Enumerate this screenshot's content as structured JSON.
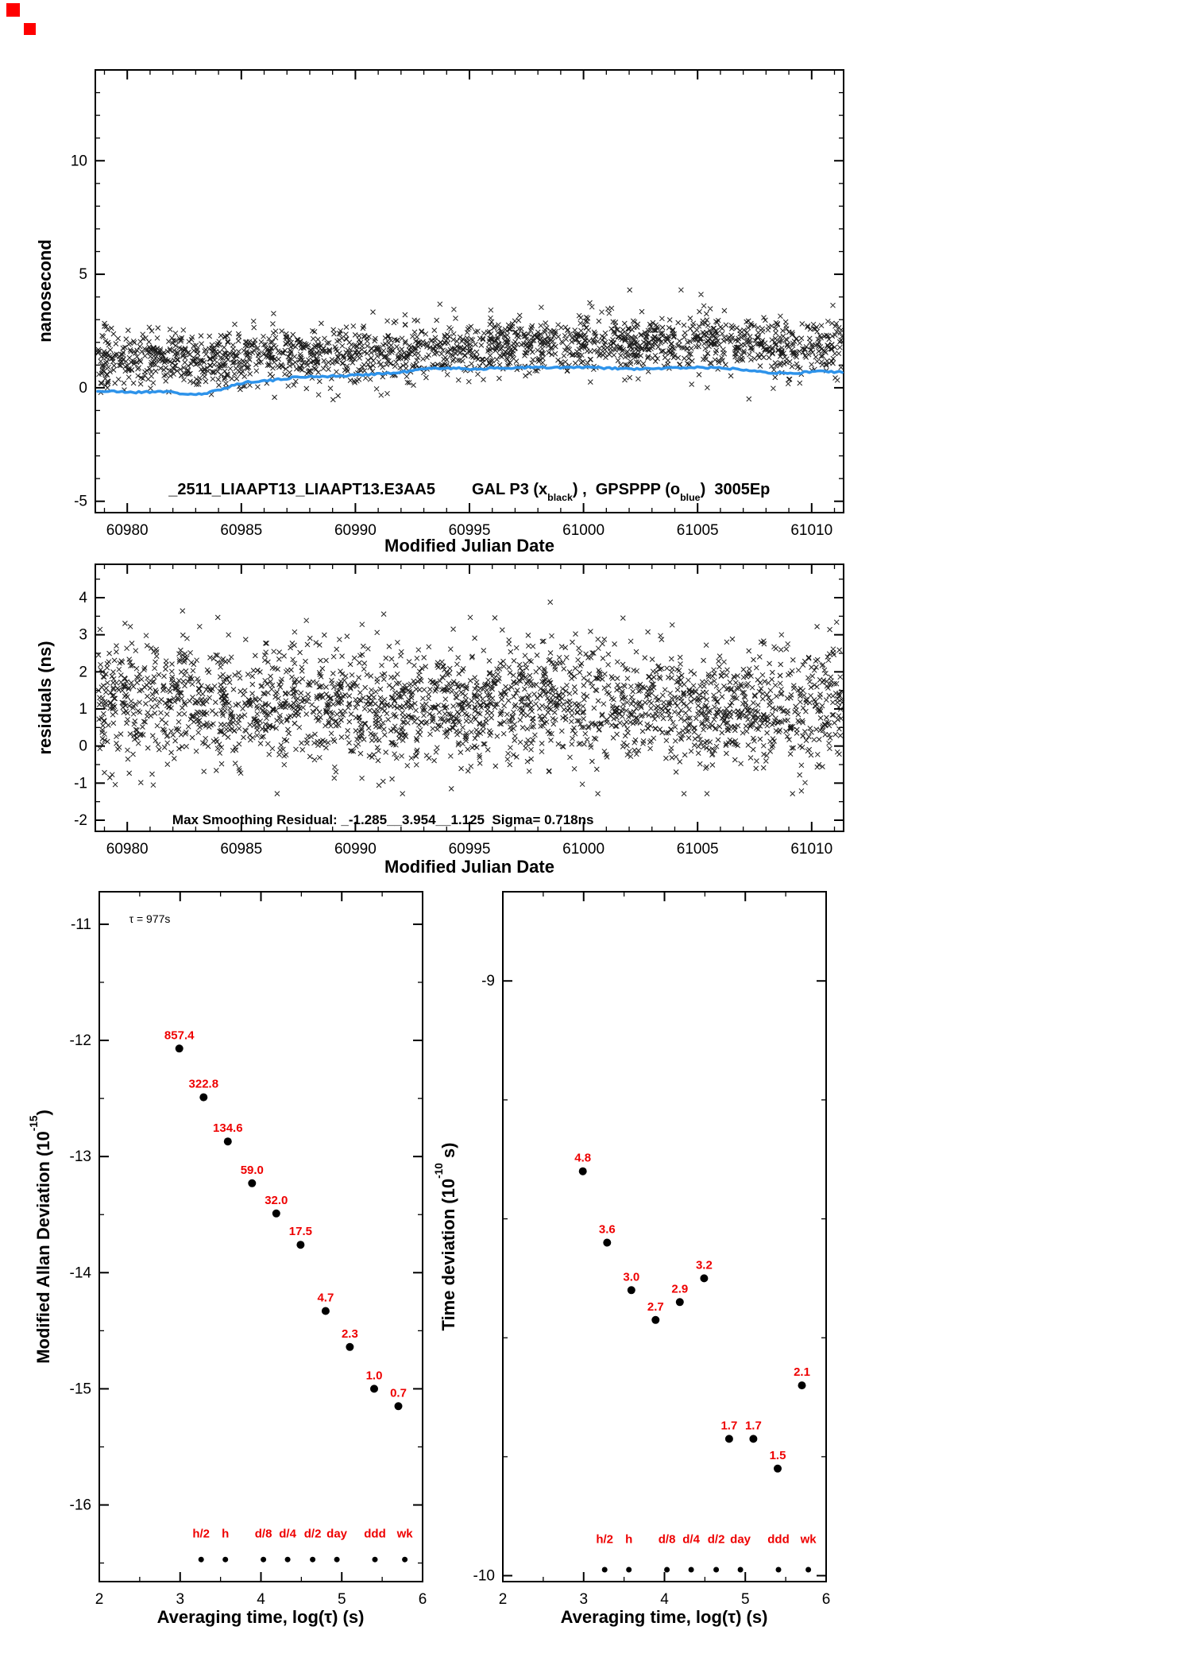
{
  "page": {
    "corner_mark_color": "#ff0000"
  },
  "chart_data": [
    {
      "type": "scatter",
      "xlabel": "Modified Julian Date",
      "ylabel": "nanosecond",
      "xlim": [
        60978.6,
        61011.4
      ],
      "ylim": [
        -5.5,
        14.0
      ],
      "xticks": [
        60980,
        60985,
        60990,
        60995,
        61000,
        61005,
        61010
      ],
      "yticks": [
        -5,
        0,
        5,
        10
      ],
      "annotation": {
        "id": "_2511_LIAAPT13_LIAAPT13.E3AA5",
        "seg1": "GAL P3 (x",
        "sub1": "black",
        "seg2": ") ,  GPSPPP (o",
        "sub2": "blue",
        "seg3": ")  3005Ep"
      },
      "series": [
        {
          "name": "GAL-P3",
          "marker": "x",
          "color": "#1c1c1c",
          "kind": "noise",
          "n": 1900,
          "seed": 7,
          "x_range": [
            60978.7,
            61011.35
          ],
          "spread": 0.6,
          "mean_profile": [
            [
              60978.7,
              1.3
            ],
            [
              60983,
              1.25
            ],
            [
              60987,
              1.45
            ],
            [
              60991,
              1.5
            ],
            [
              60994,
              1.6
            ],
            [
              60997,
              1.85
            ],
            [
              60999,
              2.05
            ],
            [
              61001,
              2.0
            ],
            [
              61004,
              1.9
            ],
            [
              61007,
              1.95
            ],
            [
              61009,
              1.7
            ],
            [
              61011.35,
              1.8
            ]
          ],
          "clamp": [
            -1.4,
            4.6
          ]
        },
        {
          "name": "GPSPPP",
          "marker": "o",
          "color": "#2e93ea",
          "kind": "line",
          "width": 3.5,
          "seed": 21,
          "wiggle": 0.045,
          "points": [
            [
              60978.7,
              -0.15
            ],
            [
              60980.5,
              -0.2
            ],
            [
              60981.5,
              -0.15
            ],
            [
              60982.5,
              -0.27
            ],
            [
              60983.3,
              -0.3
            ],
            [
              60984,
              -0.1
            ],
            [
              60984.6,
              0.1
            ],
            [
              60985.4,
              0.28
            ],
            [
              60986.4,
              0.32
            ],
            [
              60987.2,
              0.45
            ],
            [
              60988.2,
              0.5
            ],
            [
              60989.5,
              0.52
            ],
            [
              60990.6,
              0.6
            ],
            [
              60991.8,
              0.65
            ],
            [
              60992.8,
              0.8
            ],
            [
              60993.8,
              0.88
            ],
            [
              60995,
              0.83
            ],
            [
              60996.2,
              0.85
            ],
            [
              60997.4,
              0.9
            ],
            [
              60998.6,
              0.88
            ],
            [
              61000,
              0.9
            ],
            [
              61001.4,
              0.85
            ],
            [
              61002.6,
              0.82
            ],
            [
              61003.8,
              0.87
            ],
            [
              61005,
              0.9
            ],
            [
              61006.2,
              0.86
            ],
            [
              61007.2,
              0.8
            ],
            [
              61008.2,
              0.67
            ],
            [
              61009.2,
              0.62
            ],
            [
              61010.2,
              0.74
            ],
            [
              61011.35,
              0.68
            ]
          ]
        }
      ]
    },
    {
      "type": "scatter",
      "xlabel": "Modified Julian Date",
      "ylabel": "residuals (ns)",
      "xlim": [
        60978.6,
        61011.4
      ],
      "ylim": [
        -2.3,
        4.9
      ],
      "xticks": [
        60980,
        60985,
        60990,
        60995,
        61000,
        61005,
        61010
      ],
      "yticks": [
        -2,
        -1,
        0,
        1,
        2,
        3,
        4
      ],
      "annotation": "Max Smoothing Residual: _-1.285__3.954__1.125  Sigma= 0.718ns",
      "stats": {
        "residual_min": -1.285,
        "residual_max": 3.954,
        "residual_mid": 1.125,
        "sigma_ns": 0.718
      },
      "series": [
        {
          "name": "residuals",
          "marker": "x",
          "color": "#1c1c1c",
          "kind": "noise",
          "n": 2400,
          "seed": 13,
          "x_range": [
            60978.7,
            61011.35
          ],
          "spread": 0.8,
          "mean_profile": [
            [
              60978.7,
              1.2
            ],
            [
              60985,
              1.1
            ],
            [
              60990,
              1.0
            ],
            [
              60995,
              1.05
            ],
            [
              60999,
              1.25
            ],
            [
              61003,
              1.1
            ],
            [
              61007,
              1.0
            ],
            [
              61011.35,
              1.1
            ]
          ],
          "clamp": [
            -1.285,
            3.954
          ]
        }
      ]
    },
    {
      "type": "scatter",
      "xlabel": "Averaging time, log(τ) (s)",
      "ylabel_parts": [
        "Modified Allan Deviation (10",
        "-15",
        ")"
      ],
      "tau_annotation": "τ = 977s",
      "xlim": [
        2,
        6
      ],
      "ylim": [
        -16.66,
        -10.72
      ],
      "xticks": [
        2,
        3,
        4,
        5,
        6
      ],
      "yticks": [
        -16,
        -15,
        -14,
        -13,
        -12,
        -11
      ],
      "label_color": "#ee0000",
      "points": {
        "x": [
          2.99,
          3.29,
          3.59,
          3.89,
          4.19,
          4.49,
          4.8,
          5.1,
          5.4,
          5.7
        ],
        "y": [
          -12.07,
          -12.49,
          -12.87,
          -13.23,
          -13.49,
          -13.76,
          -14.33,
          -14.64,
          -15.0,
          -15.15
        ],
        "labels": [
          "857.4",
          "322.8",
          "134.6",
          "59.0",
          "32.0",
          "17.5",
          "4.7",
          "2.3",
          "1.0",
          "0.7"
        ],
        "unit": "1e-15"
      },
      "time_markers": {
        "labels": [
          "h/2",
          "h",
          "d/8",
          "d/4",
          "d/2",
          "day",
          "ddd",
          "wk"
        ],
        "x": [
          3.26,
          3.56,
          4.03,
          4.33,
          4.64,
          4.94,
          5.41,
          5.78
        ],
        "label_y": -16.28,
        "dot_y": -16.47
      }
    },
    {
      "type": "scatter",
      "xlabel": "Averaging time, log(τ) (s)",
      "ylabel_parts": [
        "Time deviation (10",
        "-10",
        " s)"
      ],
      "xlim": [
        2,
        6
      ],
      "ylim": [
        -10.01,
        -8.85
      ],
      "xticks": [
        2,
        3,
        4,
        5,
        6
      ],
      "yticks": [
        -10,
        -9
      ],
      "label_color": "#ee0000",
      "points": {
        "x": [
          2.99,
          3.29,
          3.59,
          3.89,
          4.19,
          4.49,
          4.8,
          5.1,
          5.4,
          5.7
        ],
        "y": [
          -9.32,
          -9.44,
          -9.52,
          -9.57,
          -9.54,
          -9.5,
          -9.77,
          -9.77,
          -9.82,
          -9.68
        ],
        "labels": [
          "4.8",
          "3.6",
          "3.0",
          "2.7",
          "2.9",
          "3.2",
          "1.7",
          "1.7",
          "1.5",
          "2.1"
        ],
        "unit": "1e-10"
      },
      "time_markers": {
        "labels": [
          "h/2",
          "h",
          "d/8",
          "d/4",
          "d/2",
          "day",
          "ddd",
          "wk"
        ],
        "x": [
          3.26,
          3.56,
          4.03,
          4.33,
          4.64,
          4.94,
          5.41,
          5.78
        ],
        "label_y": -9.945,
        "dot_y": -9.99
      }
    }
  ]
}
